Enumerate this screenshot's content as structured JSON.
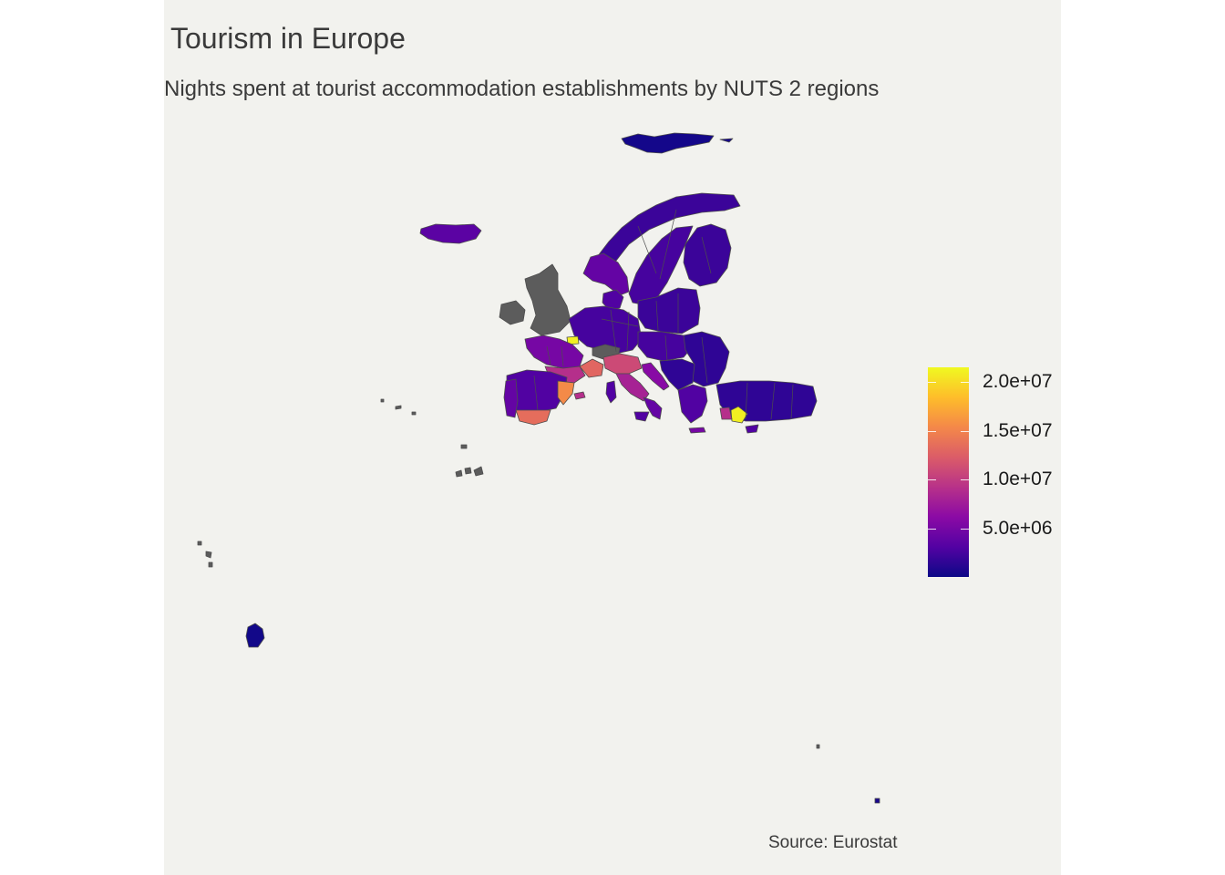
{
  "title": "Tourism in Europe",
  "subtitle": "Nights spent at tourist accommodation establishments by NUTS 2 regions",
  "caption": "Source: Eurostat",
  "legend": {
    "palette": "plasma",
    "colors": [
      "#0d0887",
      "#5302a3",
      "#8b0aa5",
      "#b83289",
      "#db5c68",
      "#f48849",
      "#febd2a",
      "#f0f921"
    ],
    "min": 0,
    "max": 21500000,
    "ticks": [
      {
        "value": 5000000,
        "label": "5.0e+06"
      },
      {
        "value": 10000000,
        "label": "1.0e+07"
      },
      {
        "value": 15000000,
        "label": "1.5e+07"
      },
      {
        "value": 20000000,
        "label": "2.0e+07"
      }
    ]
  },
  "map": {
    "background": "#f2f2ee",
    "missing_color": "#5c5c5c",
    "border_color": "#4d4d4d",
    "regions": [
      {
        "name": "Svalbard",
        "value": 300000
      },
      {
        "name": "Iceland",
        "value": 3500000
      },
      {
        "name": "Norway north",
        "value": 2000000
      },
      {
        "name": "Sweden",
        "value": 2500000
      },
      {
        "name": "Finland",
        "value": 2000000
      },
      {
        "name": "Norway south",
        "value": 4000000
      },
      {
        "name": "Denmark",
        "value": 3000000
      },
      {
        "name": "Ireland",
        "value": null
      },
      {
        "name": "United Kingdom",
        "value": null
      },
      {
        "name": "Benelux & Germany",
        "value": 2500000
      },
      {
        "name": "Paris (Ile-de-France)",
        "value": 21000000
      },
      {
        "name": "France west",
        "value": 5000000
      },
      {
        "name": "France south",
        "value": 9000000
      },
      {
        "name": "Provence-Cote d'Azur",
        "value": 13000000
      },
      {
        "name": "Switzerland",
        "value": null
      },
      {
        "name": "Northern Italy",
        "value": 11000000
      },
      {
        "name": "Central Italy",
        "value": 8000000
      },
      {
        "name": "Southern Italy",
        "value": 4000000
      },
      {
        "name": "Sicily",
        "value": 3000000
      },
      {
        "name": "Sardinia",
        "value": 3000000
      },
      {
        "name": "Spain interior",
        "value": 3000000
      },
      {
        "name": "Catalonia",
        "value": 15500000
      },
      {
        "name": "Andalusia",
        "value": 13500000
      },
      {
        "name": "Portugal",
        "value": 4000000
      },
      {
        "name": "Balearic Islands",
        "value": 9000000
      },
      {
        "name": "Poland & Baltics",
        "value": 2000000
      },
      {
        "name": "Central Europe",
        "value": 2500000
      },
      {
        "name": "Balkans",
        "value": 1500000
      },
      {
        "name": "Croatia coast",
        "value": 6000000
      },
      {
        "name": "Romania & Bulgaria",
        "value": 1500000
      },
      {
        "name": "Greece",
        "value": 3000000
      },
      {
        "name": "Crete",
        "value": 5000000
      },
      {
        "name": "Turkey",
        "value": 1500000
      },
      {
        "name": "Antalya",
        "value": 21000000
      },
      {
        "name": "Mugla",
        "value": 9000000
      },
      {
        "name": "Cyprus",
        "value": 3000000
      },
      {
        "name": "Azores",
        "value": null
      },
      {
        "name": "Madeira",
        "value": null
      },
      {
        "name": "Canary Islands",
        "value": null
      },
      {
        "name": "Guadeloupe/Martinique",
        "value": null
      },
      {
        "name": "French Guiana",
        "value": 200000
      },
      {
        "name": "Mayotte",
        "value": null
      },
      {
        "name": "Reunion",
        "value": 500000
      }
    ]
  }
}
